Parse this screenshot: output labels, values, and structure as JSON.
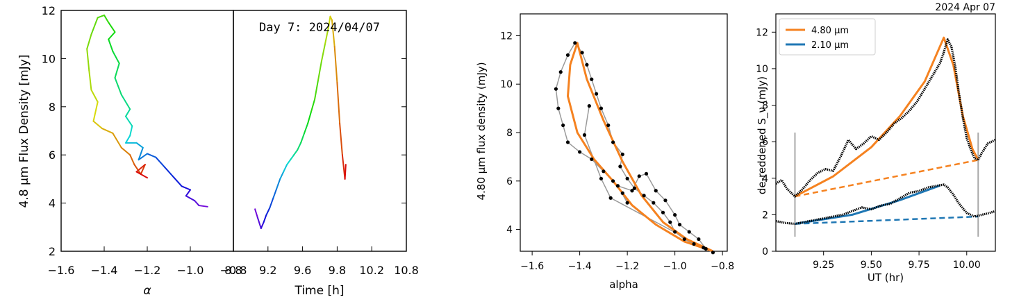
{
  "chart_data": [
    {
      "type": "line",
      "panel": "A",
      "xlabel": "α",
      "ylabel": "4.8 μm Flux Density [mJy]",
      "xlim": [
        -1.6,
        -0.8
      ],
      "ylim": [
        2,
        12
      ],
      "xticks": [
        "−1.6",
        "−1.4",
        "−1.2",
        "−1.0",
        "−0.8"
      ],
      "yticks": [
        "2",
        "4",
        "6",
        "8",
        "10",
        "12"
      ],
      "color_scale": "rainbow by time (violet early → red late)",
      "path": [
        [
          -0.92,
          3.85
        ],
        [
          -0.96,
          3.9
        ],
        [
          -0.98,
          4.1
        ],
        [
          -1.02,
          4.3
        ],
        [
          -1.0,
          4.55
        ],
        [
          -1.04,
          4.7
        ],
        [
          -1.08,
          5.1
        ],
        [
          -1.12,
          5.5
        ],
        [
          -1.16,
          5.9
        ],
        [
          -1.2,
          6.05
        ],
        [
          -1.24,
          5.8
        ],
        [
          -1.22,
          6.3
        ],
        [
          -1.25,
          6.5
        ],
        [
          -1.3,
          6.5
        ],
        [
          -1.28,
          6.8
        ],
        [
          -1.27,
          7.2
        ],
        [
          -1.3,
          7.6
        ],
        [
          -1.28,
          7.9
        ],
        [
          -1.32,
          8.5
        ],
        [
          -1.35,
          9.2
        ],
        [
          -1.33,
          9.8
        ],
        [
          -1.36,
          10.3
        ],
        [
          -1.38,
          10.8
        ],
        [
          -1.35,
          11.1
        ],
        [
          -1.38,
          11.5
        ],
        [
          -1.4,
          11.8
        ],
        [
          -1.43,
          11.7
        ],
        [
          -1.46,
          11.0
        ],
        [
          -1.48,
          10.4
        ],
        [
          -1.47,
          9.5
        ],
        [
          -1.46,
          8.7
        ],
        [
          -1.43,
          8.2
        ],
        [
          -1.45,
          7.4
        ],
        [
          -1.41,
          7.1
        ],
        [
          -1.36,
          6.9
        ],
        [
          -1.32,
          6.3
        ],
        [
          -1.28,
          6.0
        ],
        [
          -1.26,
          5.6
        ],
        [
          -1.23,
          5.2
        ],
        [
          -1.21,
          5.6
        ],
        [
          -1.25,
          5.3
        ],
        [
          -1.2,
          5.05
        ]
      ]
    },
    {
      "type": "line",
      "panel": "B",
      "title": "Day 7: 2024/04/07",
      "xlabel": "Time [h]",
      "xlim": [
        8.8,
        10.8
      ],
      "ylim": [
        2,
        12
      ],
      "xticks": [
        "8.8",
        "9.2",
        "9.6",
        "9.8",
        "10.2",
        "10.8"
      ],
      "x": [
        9.05,
        9.08,
        9.12,
        9.15,
        9.18,
        9.22,
        9.26,
        9.3,
        9.34,
        9.38,
        9.42,
        9.46,
        9.5,
        9.54,
        9.58,
        9.62,
        9.66,
        9.7,
        9.74,
        9.78,
        9.82,
        9.86,
        9.9,
        9.92,
        9.94,
        9.97,
        10.0,
        10.03,
        10.06,
        10.09,
        10.1
      ],
      "y": [
        3.75,
        3.4,
        2.95,
        3.2,
        3.5,
        3.8,
        4.2,
        4.6,
        5.0,
        5.3,
        5.6,
        5.8,
        6.0,
        6.2,
        6.5,
        6.9,
        7.3,
        7.8,
        8.3,
        9.1,
        9.9,
        10.6,
        11.3,
        11.75,
        11.6,
        10.5,
        9.0,
        7.3,
        6.0,
        5.0,
        5.6
      ]
    },
    {
      "type": "scatter",
      "panel": "C",
      "xlabel": "alpha",
      "ylabel": "4.80 μm flux density (mJy)",
      "xlim": [
        -1.65,
        -0.78
      ],
      "ylim": [
        3.1,
        12.9
      ],
      "xticks": [
        "−1.6",
        "−1.4",
        "−1.2",
        "−1.0",
        "−0.8"
      ],
      "yticks": [
        "4",
        "6",
        "8",
        "10",
        "12"
      ],
      "fit_loop": [
        [
          -0.84,
          3.1
        ],
        [
          -0.95,
          3.6
        ],
        [
          -1.05,
          4.3
        ],
        [
          -1.14,
          5.4
        ],
        [
          -1.22,
          6.8
        ],
        [
          -1.3,
          8.5
        ],
        [
          -1.37,
          10.2
        ],
        [
          -1.41,
          11.7
        ],
        [
          -1.44,
          10.8
        ],
        [
          -1.45,
          9.5
        ],
        [
          -1.41,
          8.0
        ],
        [
          -1.34,
          6.9
        ],
        [
          -1.26,
          6.0
        ],
        [
          -1.18,
          5.0
        ],
        [
          -1.08,
          4.2
        ],
        [
          -0.96,
          3.5
        ]
      ],
      "points": [
        [
          -0.84,
          3.05
        ],
        [
          -0.88,
          3.25
        ],
        [
          -0.92,
          3.4
        ],
        [
          -0.96,
          3.6
        ],
        [
          -1.0,
          3.9
        ],
        [
          -1.02,
          4.3
        ],
        [
          -1.05,
          4.7
        ],
        [
          -1.09,
          5.1
        ],
        [
          -1.13,
          5.4
        ],
        [
          -1.17,
          5.7
        ],
        [
          -1.2,
          6.1
        ],
        [
          -1.23,
          6.6
        ],
        [
          -1.22,
          7.1
        ],
        [
          -1.26,
          7.6
        ],
        [
          -1.28,
          8.3
        ],
        [
          -1.31,
          9.0
        ],
        [
          -1.33,
          9.6
        ],
        [
          -1.35,
          10.2
        ],
        [
          -1.37,
          10.8
        ],
        [
          -1.39,
          11.3
        ],
        [
          -1.42,
          11.7
        ],
        [
          -1.45,
          11.2
        ],
        [
          -1.48,
          10.5
        ],
        [
          -1.5,
          9.8
        ],
        [
          -1.49,
          9.0
        ],
        [
          -1.47,
          8.3
        ],
        [
          -1.45,
          7.6
        ],
        [
          -1.4,
          7.2
        ],
        [
          -1.35,
          6.9
        ],
        [
          -1.3,
          6.4
        ],
        [
          -1.26,
          6.0
        ],
        [
          -1.22,
          5.5
        ],
        [
          -1.2,
          5.1
        ],
        [
          -1.24,
          5.8
        ],
        [
          -1.18,
          5.6
        ],
        [
          -1.15,
          6.2
        ],
        [
          -1.12,
          6.3
        ],
        [
          -1.08,
          5.6
        ],
        [
          -1.04,
          5.2
        ],
        [
          -1.0,
          4.6
        ],
        [
          -0.98,
          4.2
        ],
        [
          -0.94,
          3.9
        ],
        [
          -0.9,
          3.6
        ],
        [
          -0.87,
          3.2
        ],
        [
          -1.27,
          5.3
        ],
        [
          -1.31,
          6.1
        ],
        [
          -1.38,
          7.9
        ],
        [
          -1.36,
          9.1
        ]
      ]
    },
    {
      "type": "line",
      "panel": "D",
      "title": "2024 Apr 07",
      "xlabel": "UT (hr)",
      "ylabel": "de-reddened  S_ν (mJy)",
      "xlim": [
        9.0,
        10.15
      ],
      "ylim": [
        0,
        13
      ],
      "xticks": [
        "9.25",
        "9.50",
        "9.75",
        "10.00"
      ],
      "yticks": [
        "0",
        "2",
        "4",
        "6",
        "8",
        "10",
        "12"
      ],
      "legend_position": "top-left",
      "series": [
        {
          "name": "4.80 μm",
          "color": "#f58220",
          "x": [
            9.0,
            9.03,
            9.06,
            9.1,
            9.14,
            9.18,
            9.22,
            9.26,
            9.3,
            9.34,
            9.38,
            9.42,
            9.46,
            9.5,
            9.54,
            9.58,
            9.62,
            9.66,
            9.7,
            9.74,
            9.78,
            9.82,
            9.86,
            9.88,
            9.9,
            9.92,
            9.94,
            9.96,
            9.98,
            10.0,
            10.02,
            10.04,
            10.06,
            10.08,
            10.11,
            10.15
          ],
          "y": [
            3.7,
            3.9,
            3.4,
            3.0,
            3.4,
            3.9,
            4.3,
            4.5,
            4.4,
            5.2,
            6.1,
            5.6,
            5.9,
            6.3,
            6.1,
            6.5,
            7.0,
            7.3,
            7.7,
            8.2,
            8.9,
            9.6,
            10.3,
            10.9,
            11.6,
            11.2,
            10.1,
            8.6,
            7.3,
            6.2,
            5.6,
            5.1,
            5.0,
            5.4,
            5.9,
            6.1
          ]
        },
        {
          "name": "2.10 μm",
          "color": "#1f77b4",
          "x": [
            9.0,
            9.05,
            9.1,
            9.15,
            9.2,
            9.25,
            9.3,
            9.35,
            9.4,
            9.45,
            9.5,
            9.55,
            9.6,
            9.65,
            9.7,
            9.75,
            9.8,
            9.85,
            9.88,
            9.9,
            9.93,
            9.96,
            10.0,
            10.04,
            10.08,
            10.12,
            10.15
          ],
          "y": [
            1.65,
            1.55,
            1.5,
            1.6,
            1.7,
            1.8,
            1.9,
            2.0,
            2.2,
            2.4,
            2.3,
            2.5,
            2.6,
            2.9,
            3.2,
            3.3,
            3.5,
            3.6,
            3.65,
            3.5,
            3.1,
            2.6,
            2.1,
            1.9,
            2.0,
            2.1,
            2.2
          ]
        }
      ],
      "fits": {
        "orange_curve": [
          [
            9.1,
            3.0
          ],
          [
            9.3,
            4.1
          ],
          [
            9.5,
            5.7
          ],
          [
            9.65,
            7.4
          ],
          [
            9.78,
            9.3
          ],
          [
            9.88,
            11.7
          ],
          [
            9.93,
            10.2
          ],
          [
            9.98,
            7.4
          ],
          [
            10.03,
            5.6
          ],
          [
            10.06,
            5.0
          ]
        ],
        "orange_baseline": [
          [
            9.1,
            3.0
          ],
          [
            10.06,
            5.0
          ]
        ],
        "blue_curve": [
          [
            9.1,
            1.5
          ],
          [
            9.4,
            2.0
          ],
          [
            9.65,
            2.8
          ],
          [
            9.86,
            3.6
          ]
        ],
        "blue_baseline": [
          [
            9.1,
            1.5
          ],
          [
            10.06,
            1.9
          ]
        ],
        "vlines": [
          9.1,
          10.06
        ]
      }
    }
  ]
}
